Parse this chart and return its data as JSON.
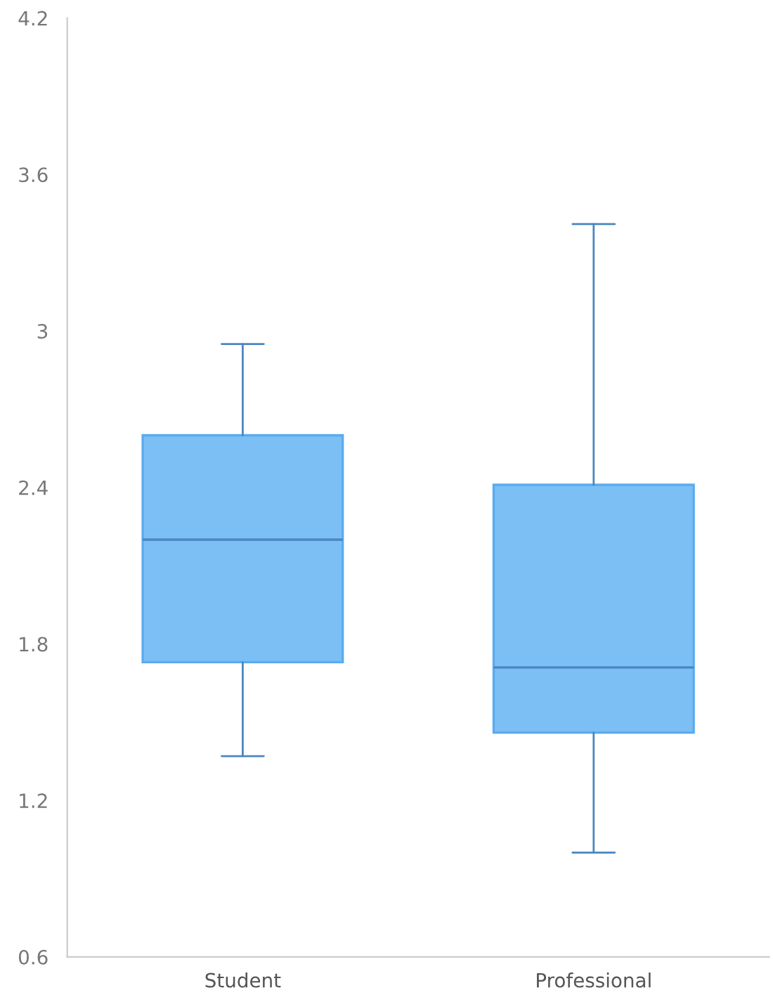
{
  "chart_data": {
    "type": "box",
    "categories": [
      "Student",
      "Professional"
    ],
    "boxes": [
      {
        "low": 1.37,
        "q1": 1.73,
        "median": 2.2,
        "q3": 2.6,
        "high": 2.95
      },
      {
        "low": 1.0,
        "q1": 1.46,
        "median": 1.71,
        "q3": 2.41,
        "high": 3.41
      }
    ],
    "color": "#7cbff5",
    "ylim": [
      0.6,
      4.2
    ],
    "yticks": [
      0.6,
      1.2,
      1.8,
      2.4,
      3,
      3.6,
      4.2
    ],
    "grid": false,
    "legend": false
  }
}
